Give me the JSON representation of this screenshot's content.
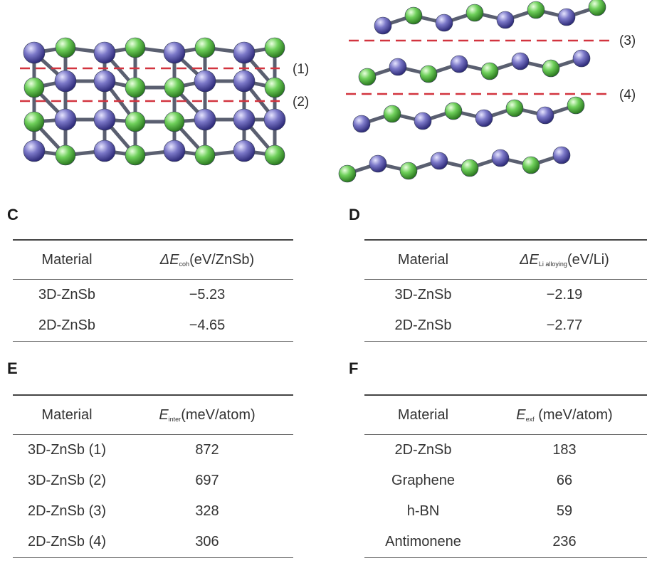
{
  "cleavage_labels": [
    "(1)",
    "(2)",
    "(3)",
    "(4)"
  ],
  "colors": {
    "zn_atom": "#7b78c8",
    "sb_atom": "#6ecf5a",
    "cut_line": "#d2343f",
    "bond": "#5a5f70"
  },
  "panels": {
    "C": {
      "letter": "C",
      "col1_header": "Material",
      "col2_symbol": "ΔE",
      "col2_sub": "coh",
      "col2_unit": "(eV/ZnSb)",
      "rows": [
        {
          "material": "3D-ZnSb",
          "value": "−5.23"
        },
        {
          "material": "2D-ZnSb",
          "value": "−4.65"
        }
      ]
    },
    "D": {
      "letter": "D",
      "col1_header": "Material",
      "col2_symbol": "ΔE",
      "col2_sub": "Li alloying",
      "col2_unit": "(eV/Li)",
      "rows": [
        {
          "material": "3D-ZnSb",
          "value": "−2.19"
        },
        {
          "material": "2D-ZnSb",
          "value": "−2.77"
        }
      ]
    },
    "E": {
      "letter": "E",
      "col1_header": "Material",
      "col2_symbol": "E",
      "col2_sub": "inter",
      "col2_unit": "(meV/atom)",
      "rows": [
        {
          "material": "3D-ZnSb (1)",
          "value": "872"
        },
        {
          "material": "3D-ZnSb (2)",
          "value": "697"
        },
        {
          "material": "2D-ZnSb (3)",
          "value": "328"
        },
        {
          "material": "2D-ZnSb (4)",
          "value": "306"
        }
      ]
    },
    "F": {
      "letter": "F",
      "col1_header": "Material",
      "col2_symbol": "E",
      "col2_sub": "exf",
      "col2_unit": " (meV/atom)",
      "rows": [
        {
          "material": "2D-ZnSb",
          "value": "183"
        },
        {
          "material": "Graphene",
          "value": "66"
        },
        {
          "material": "h-BN",
          "value": "59"
        },
        {
          "material": "Antimonene",
          "value": "236"
        }
      ]
    }
  }
}
